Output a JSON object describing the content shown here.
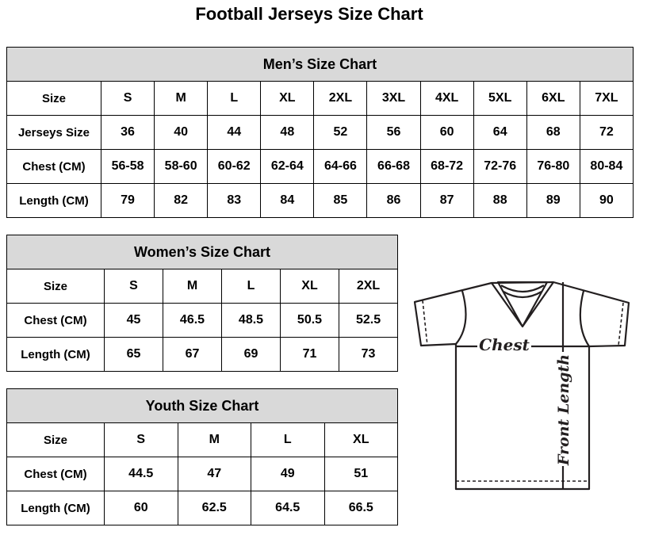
{
  "title": "Football Jerseys Size Chart",
  "men": {
    "caption": "Men’s Size Chart",
    "rows": [
      [
        "Size",
        "S",
        "M",
        "L",
        "XL",
        "2XL",
        "3XL",
        "4XL",
        "5XL",
        "6XL",
        "7XL"
      ],
      [
        "Jerseys Size",
        "36",
        "40",
        "44",
        "48",
        "52",
        "56",
        "60",
        "64",
        "68",
        "72"
      ],
      [
        "Chest (CM)",
        "56-58",
        "58-60",
        "60-62",
        "62-64",
        "64-66",
        "66-68",
        "68-72",
        "72-76",
        "76-80",
        "80-84"
      ],
      [
        "Length (CM)",
        "79",
        "82",
        "83",
        "84",
        "85",
        "86",
        "87",
        "88",
        "89",
        "90"
      ]
    ]
  },
  "women": {
    "caption": "Women’s Size Chart",
    "rows": [
      [
        "Size",
        "S",
        "M",
        "L",
        "XL",
        "2XL"
      ],
      [
        "Chest (CM)",
        "45",
        "46.5",
        "48.5",
        "50.5",
        "52.5"
      ],
      [
        "Length (CM)",
        "65",
        "67",
        "69",
        "71",
        "73"
      ]
    ]
  },
  "youth": {
    "caption": "Youth Size Chart",
    "rows": [
      [
        "Size",
        "S",
        "M",
        "L",
        "XL"
      ],
      [
        "Chest (CM)",
        "44.5",
        "47",
        "49",
        "51"
      ],
      [
        "Length (CM)",
        "60",
        "62.5",
        "64.5",
        "66.5"
      ]
    ]
  },
  "diagram": {
    "chest_label": "Chest",
    "length_label": "Front Length"
  },
  "colors": {
    "header_bg": "#d9d9d9"
  }
}
